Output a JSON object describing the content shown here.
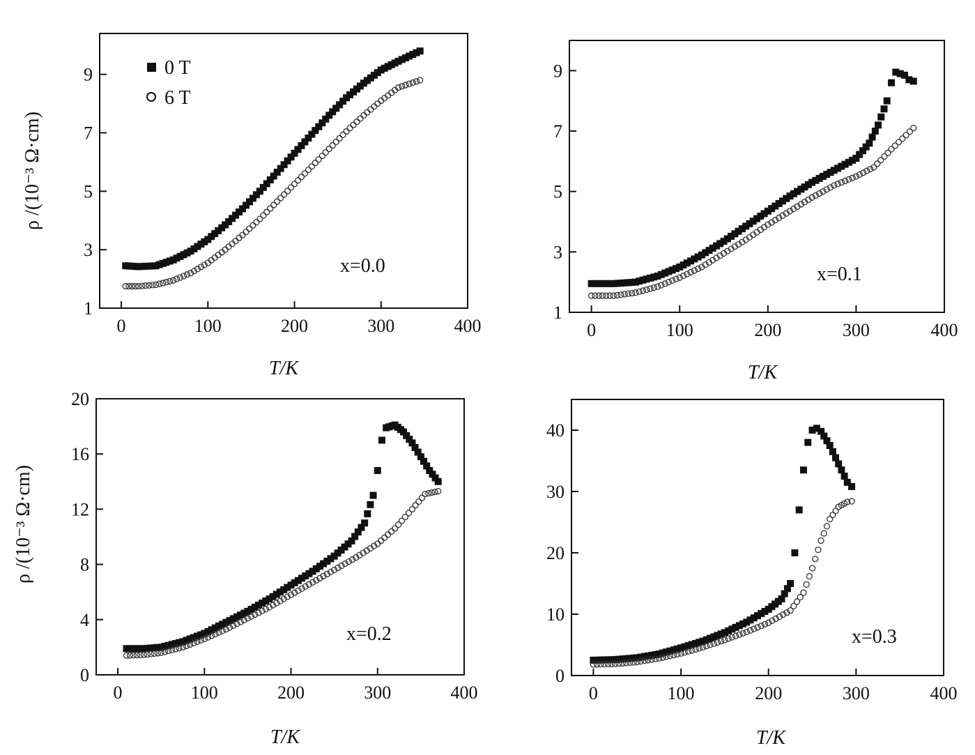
{
  "figure": {
    "legend": [
      {
        "marker": "filled-square",
        "label": "0 T"
      },
      {
        "marker": "open-circle",
        "label": "6 T"
      }
    ],
    "colors": {
      "ink": "#111111",
      "background": "#ffffff"
    }
  },
  "chart_data": [
    {
      "type": "scatter",
      "annotation": "x=0.0",
      "xlabel": "T/K",
      "ylabel": "ρ /(10⁻³ Ω·cm)",
      "xlim": [
        -25,
        400
      ],
      "ylim": [
        1,
        10.4
      ],
      "xticks": [
        0,
        100,
        200,
        300,
        400
      ],
      "yticks": [
        1,
        3,
        5,
        7,
        9
      ],
      "legend_position": "top-left",
      "series": [
        {
          "name": "0 T",
          "marker": "filled-square",
          "x": [
            5,
            20,
            40,
            60,
            80,
            100,
            120,
            140,
            160,
            180,
            200,
            220,
            240,
            260,
            280,
            300,
            320,
            345
          ],
          "y": [
            2.45,
            2.42,
            2.45,
            2.65,
            2.95,
            3.35,
            3.85,
            4.4,
            5.0,
            5.65,
            6.3,
            6.95,
            7.6,
            8.2,
            8.7,
            9.15,
            9.45,
            9.8
          ]
        },
        {
          "name": "6 T",
          "marker": "open-circle",
          "x": [
            5,
            20,
            40,
            60,
            80,
            100,
            120,
            140,
            160,
            180,
            200,
            220,
            240,
            260,
            280,
            300,
            320,
            345
          ],
          "y": [
            1.75,
            1.75,
            1.8,
            1.95,
            2.2,
            2.55,
            3.0,
            3.5,
            4.05,
            4.65,
            5.25,
            5.85,
            6.45,
            7.05,
            7.6,
            8.1,
            8.55,
            8.8
          ]
        }
      ]
    },
    {
      "type": "scatter",
      "annotation": "x=0.1",
      "xlabel": "T/K",
      "ylabel": "",
      "xlim": [
        -25,
        400
      ],
      "ylim": [
        1,
        10
      ],
      "xticks": [
        0,
        100,
        200,
        300,
        400
      ],
      "yticks": [
        1,
        3,
        5,
        7,
        9
      ],
      "series": [
        {
          "name": "0 T",
          "marker": "filled-square",
          "x": [
            0,
            25,
            50,
            75,
            100,
            125,
            150,
            175,
            200,
            225,
            250,
            275,
            300,
            315,
            325,
            335,
            340,
            345,
            350,
            355,
            360,
            365
          ],
          "y": [
            1.95,
            1.95,
            2.0,
            2.2,
            2.5,
            2.9,
            3.35,
            3.85,
            4.35,
            4.85,
            5.3,
            5.7,
            6.1,
            6.6,
            7.2,
            8.0,
            8.6,
            8.95,
            8.9,
            8.85,
            8.7,
            8.65
          ]
        },
        {
          "name": "6 T",
          "marker": "open-circle",
          "x": [
            0,
            25,
            50,
            75,
            100,
            125,
            150,
            175,
            200,
            225,
            250,
            275,
            300,
            320,
            340,
            365
          ],
          "y": [
            1.55,
            1.55,
            1.65,
            1.85,
            2.15,
            2.5,
            2.95,
            3.4,
            3.9,
            4.35,
            4.8,
            5.2,
            5.5,
            5.8,
            6.4,
            7.1
          ]
        }
      ]
    },
    {
      "type": "scatter",
      "annotation": "x=0.2",
      "xlabel": "T/K",
      "ylabel": "ρ /(10⁻³ Ω·cm)",
      "xlim": [
        -25,
        400
      ],
      "ylim": [
        0,
        20
      ],
      "xticks": [
        0,
        100,
        200,
        300,
        400
      ],
      "yticks": [
        0,
        4,
        8,
        12,
        16,
        20
      ],
      "series": [
        {
          "name": "0 T",
          "marker": "filled-square",
          "x": [
            10,
            30,
            50,
            75,
            100,
            125,
            150,
            175,
            200,
            225,
            250,
            270,
            285,
            295,
            300,
            305,
            310,
            320,
            330,
            340,
            350,
            360,
            370
          ],
          "y": [
            1.9,
            1.9,
            2.0,
            2.4,
            3.0,
            3.8,
            4.6,
            5.5,
            6.5,
            7.5,
            8.6,
            9.7,
            11.0,
            13.0,
            14.8,
            17.0,
            17.9,
            18.1,
            17.6,
            16.8,
            15.8,
            14.8,
            14.0
          ]
        },
        {
          "name": "6 T",
          "marker": "open-circle",
          "x": [
            10,
            30,
            50,
            75,
            100,
            125,
            150,
            175,
            200,
            225,
            250,
            275,
            300,
            320,
            340,
            355,
            370
          ],
          "y": [
            1.4,
            1.45,
            1.6,
            2.0,
            2.6,
            3.3,
            4.1,
            4.9,
            5.8,
            6.7,
            7.6,
            8.5,
            9.5,
            10.6,
            12.0,
            13.1,
            13.3
          ]
        }
      ]
    },
    {
      "type": "scatter",
      "annotation": "x=0.3",
      "xlabel": "T/K",
      "ylabel": "",
      "xlim": [
        -25,
        400
      ],
      "ylim": [
        0,
        45
      ],
      "xticks": [
        0,
        100,
        200,
        300,
        400
      ],
      "yticks": [
        0,
        10,
        20,
        30,
        40
      ],
      "series": [
        {
          "name": "0 T",
          "marker": "filled-square",
          "x": [
            0,
            25,
            50,
            75,
            100,
            125,
            150,
            175,
            200,
            215,
            225,
            230,
            235,
            240,
            245,
            250,
            255,
            260,
            270,
            280,
            290,
            295
          ],
          "y": [
            2.5,
            2.6,
            2.9,
            3.5,
            4.5,
            5.6,
            7.0,
            8.7,
            10.8,
            12.5,
            15.0,
            20.0,
            27.0,
            33.5,
            38.0,
            40.0,
            40.3,
            39.8,
            37.5,
            34.5,
            31.5,
            30.8
          ]
        },
        {
          "name": "6 T",
          "marker": "open-circle",
          "x": [
            0,
            25,
            50,
            75,
            100,
            125,
            150,
            175,
            200,
            225,
            240,
            250,
            260,
            270,
            280,
            290,
            295
          ],
          "y": [
            1.8,
            1.9,
            2.2,
            2.8,
            3.6,
            4.6,
            5.8,
            7.1,
            8.6,
            10.6,
            13.5,
            17.5,
            22.0,
            25.5,
            27.5,
            28.3,
            28.4
          ]
        }
      ]
    }
  ]
}
